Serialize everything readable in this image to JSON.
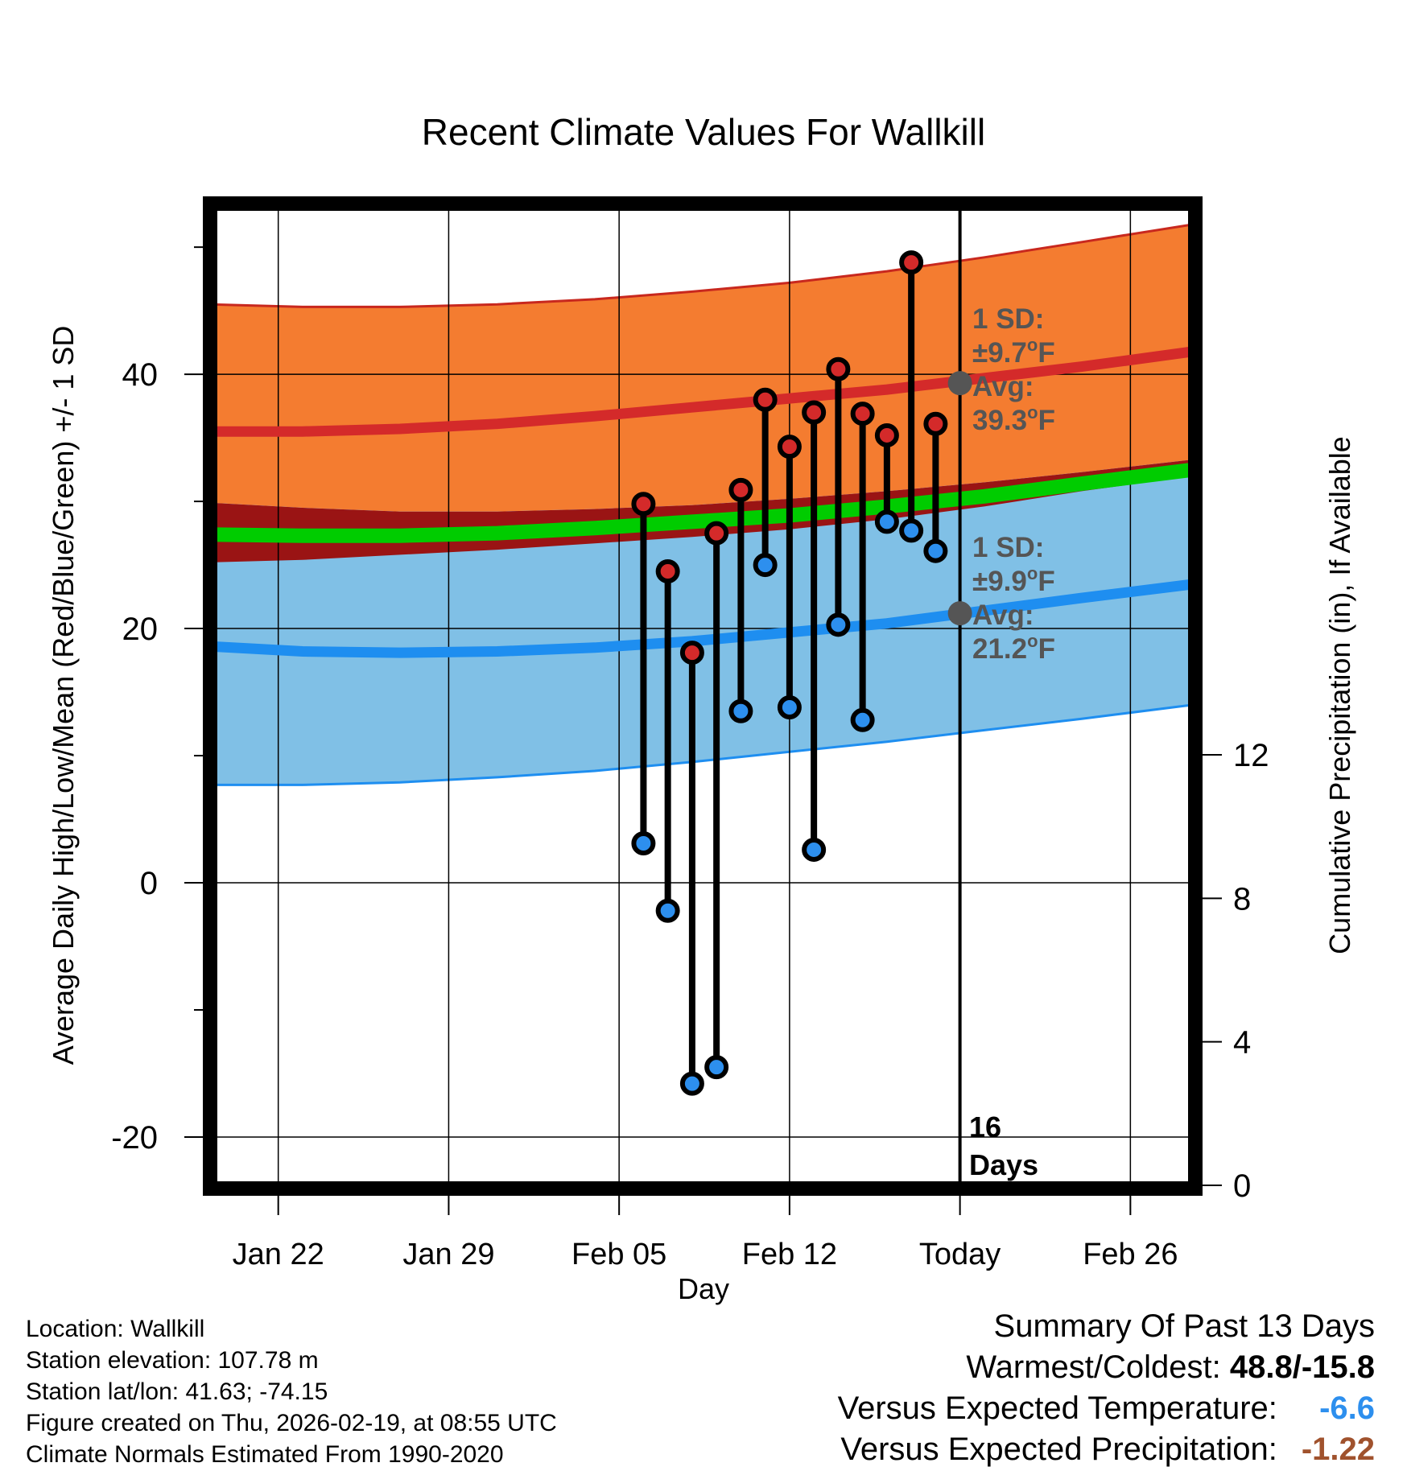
{
  "chart_data": {
    "type": "line",
    "title": "Recent Climate Values For Wallkill",
    "xlabel": "Day",
    "ylabel_left": "Average Daily High/Low/Mean (Red/Blue/Green) +/- 1 SD",
    "ylabel_right": "Cumulative Precipitation (in), If Available",
    "x_ticks": [
      {
        "day": 3,
        "label": "Jan 22"
      },
      {
        "day": 10,
        "label": "Jan 29"
      },
      {
        "day": 17,
        "label": "Feb 05"
      },
      {
        "day": 24,
        "label": "Feb 12"
      },
      {
        "day": 31,
        "label": "Today"
      },
      {
        "day": 38,
        "label": "Feb 26"
      }
    ],
    "xlim": [
      0.2,
      40.6
    ],
    "ylim": [
      -23.8,
      53.3
    ],
    "y_ticks_left": [
      -20,
      0,
      20,
      40
    ],
    "y_minor_ticks_left": [
      -10,
      10,
      30,
      50
    ],
    "y_ticks_right": [
      0,
      4,
      8,
      12
    ],
    "precip_ylim": [
      0,
      27.32
    ],
    "today_day": 31,
    "today_label": [
      "16",
      "Days"
    ],
    "normals": {
      "days": [
        0.2,
        4,
        8,
        12,
        16,
        20,
        24,
        28,
        32,
        36,
        40.6
      ],
      "high_avg": [
        35.5,
        35.5,
        35.7,
        36.1,
        36.7,
        37.4,
        38.1,
        38.8,
        39.7,
        40.6,
        41.8
      ],
      "high_upper": [
        45.5,
        45.3,
        45.3,
        45.5,
        45.9,
        46.5,
        47.2,
        48.1,
        49.2,
        50.4,
        51.8
      ],
      "high_lower": [
        29.9,
        29.5,
        29.2,
        29.2,
        29.4,
        29.7,
        30.2,
        30.8,
        31.5,
        32.3,
        33.3
      ],
      "mean_avg": [
        27.4,
        27.3,
        27.3,
        27.5,
        27.9,
        28.4,
        28.9,
        29.6,
        30.4,
        31.4,
        32.5
      ],
      "low_avg": [
        18.6,
        18.2,
        18.1,
        18.2,
        18.5,
        19.0,
        19.7,
        20.4,
        21.4,
        22.4,
        23.5
      ],
      "low_upper": [
        25.2,
        25.4,
        25.8,
        26.2,
        26.7,
        27.2,
        27.8,
        28.6,
        29.6,
        30.8,
        32.0
      ],
      "low_lower": [
        7.7,
        7.7,
        7.9,
        8.3,
        8.8,
        9.5,
        10.3,
        11.1,
        12.0,
        12.9,
        14.0
      ]
    },
    "series": [
      {
        "name": "High",
        "color": "#d42a2a",
        "days": [
          18,
          19,
          20,
          21,
          22,
          23,
          24,
          25,
          26,
          27,
          28,
          29,
          30
        ],
        "values": [
          29.8,
          24.5,
          18.1,
          27.5,
          30.9,
          38.0,
          34.3,
          37.0,
          40.4,
          36.9,
          35.2,
          48.8,
          36.1
        ]
      },
      {
        "name": "Low",
        "color": "#2d8fee",
        "days": [
          18,
          19,
          20,
          21,
          22,
          23,
          24,
          25,
          26,
          27,
          28,
          29,
          30
        ],
        "values": [
          3.1,
          -2.2,
          -15.8,
          -14.5,
          13.5,
          25.0,
          13.8,
          2.6,
          20.3,
          12.8,
          28.4,
          27.7,
          26.1
        ]
      }
    ],
    "precip": {
      "days": [
        28.5,
        40.6
      ],
      "values": [
        0.02,
        0.05
      ],
      "color": "#2aa198"
    },
    "annotations": {
      "high": {
        "sd_label": "1 SD:",
        "sd_value": "±9.7",
        "avg_label": "Avg:",
        "avg_value": "39.3",
        "unit": "F",
        "dot_value": 39.3
      },
      "low": {
        "sd_label": "1 SD:",
        "sd_value": "±9.9",
        "avg_label": "Avg:",
        "avg_value": "21.2",
        "unit": "F",
        "dot_value": 21.2
      }
    },
    "colors": {
      "high_band": "#f47c30",
      "high_line": "#d42a2a",
      "low_band": "#80c0e6",
      "low_line": "#1e8ef0",
      "mean_line": "#00cc00",
      "overlap": "#9a1414",
      "annotation": "#555555",
      "marker_outline": "#000000"
    }
  },
  "footer": {
    "location": "Location: Wallkill",
    "elevation": "Station elevation: 107.78 m",
    "latlon": "Station lat/lon: 41.63; -74.15",
    "created": "Figure created on Thu, 2026-02-19, at 08:55 UTC",
    "normals": "Climate Normals Estimated From 1990-2020"
  },
  "summary": {
    "title": "Summary Of Past 13 Days",
    "warmest_label": "Warmest/Coldest:",
    "warmest_value": "48.8/-15.8",
    "temp_label": "Versus Expected Temperature:",
    "temp_value": "-6.6",
    "temp_color": "#2d8fee",
    "precip_label": "Versus Expected Precipitation:",
    "precip_value": "-1.22",
    "precip_color": "#a0522d"
  }
}
